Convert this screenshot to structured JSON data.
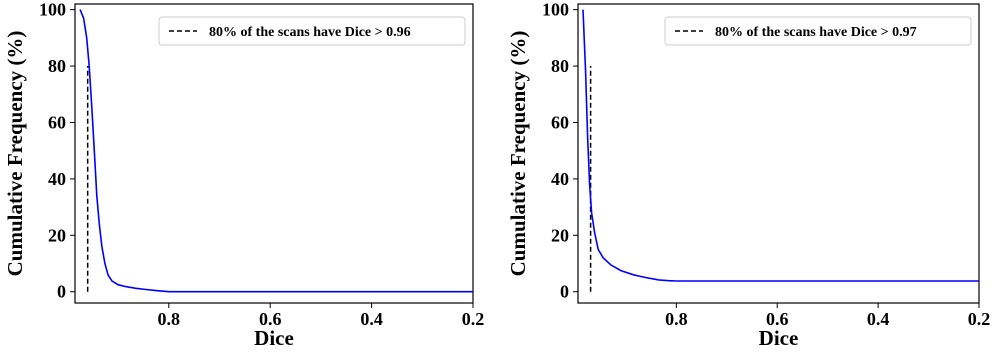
{
  "chart_data": [
    {
      "type": "line",
      "xlabel": "Dice",
      "ylabel": "Cumulative Frequency (%)",
      "x_reversed": true,
      "xlim": [
        0.985,
        0.2
      ],
      "ylim": [
        -4,
        102
      ],
      "x_ticks": [
        0.8,
        0.6,
        0.4,
        0.2
      ],
      "x_tick_labels": [
        "0.8",
        "0.6",
        "0.4",
        "0.2"
      ],
      "y_ticks": [
        0,
        20,
        40,
        60,
        80,
        100
      ],
      "y_tick_labels": [
        "0",
        "20",
        "40",
        "60",
        "80",
        "100"
      ],
      "grid": false,
      "legend_position": "top-right",
      "colors": {
        "series": "#0000ff",
        "threshold": "#000000"
      },
      "series": [
        {
          "x": [
            0.975,
            0.968,
            0.962,
            0.957,
            0.952,
            0.947,
            0.942,
            0.937,
            0.932,
            0.926,
            0.92,
            0.912,
            0.9,
            0.885,
            0.865,
            0.845,
            0.825,
            0.8,
            0.7,
            0.6,
            0.5,
            0.4,
            0.3,
            0.2
          ],
          "y": [
            100,
            97,
            90,
            80,
            66,
            50,
            34,
            24,
            16,
            10,
            6,
            3.8,
            2.5,
            1.8,
            1.2,
            0.8,
            0.4,
            0,
            0,
            0,
            0,
            0,
            0,
            0
          ]
        }
      ],
      "threshold_line": {
        "x": 0.96,
        "y_range": [
          0,
          80
        ]
      },
      "legend": {
        "entry": "80% of the scans have Dice > 0.96"
      }
    },
    {
      "type": "line",
      "xlabel": "Dice",
      "ylabel": "Cumulative Frequency (%)",
      "x_reversed": true,
      "xlim": [
        0.995,
        0.2
      ],
      "ylim": [
        -4,
        102
      ],
      "x_ticks": [
        0.8,
        0.6,
        0.4,
        0.2
      ],
      "x_tick_labels": [
        "0.8",
        "0.6",
        "0.4",
        "0.2"
      ],
      "y_ticks": [
        0,
        20,
        40,
        60,
        80,
        100
      ],
      "y_tick_labels": [
        "0",
        "20",
        "40",
        "60",
        "80",
        "100"
      ],
      "grid": false,
      "legend_position": "top-right",
      "colors": {
        "series": "#0000ff",
        "threshold": "#000000"
      },
      "series": [
        {
          "x": [
            0.985,
            0.98,
            0.976,
            0.972,
            0.968,
            0.962,
            0.955,
            0.945,
            0.93,
            0.91,
            0.885,
            0.86,
            0.835,
            0.815,
            0.8,
            0.7,
            0.6,
            0.5,
            0.4,
            0.3,
            0.2
          ],
          "y": [
            100,
            78,
            55,
            38,
            28,
            21,
            15,
            12,
            9.5,
            7.5,
            6,
            5,
            4.2,
            3.9,
            3.8,
            3.8,
            3.8,
            3.8,
            3.8,
            3.8,
            3.8
          ]
        }
      ],
      "threshold_line": {
        "x": 0.97,
        "y_range": [
          0,
          80
        ]
      },
      "legend": {
        "entry": "80% of the scans have Dice > 0.97"
      }
    }
  ]
}
